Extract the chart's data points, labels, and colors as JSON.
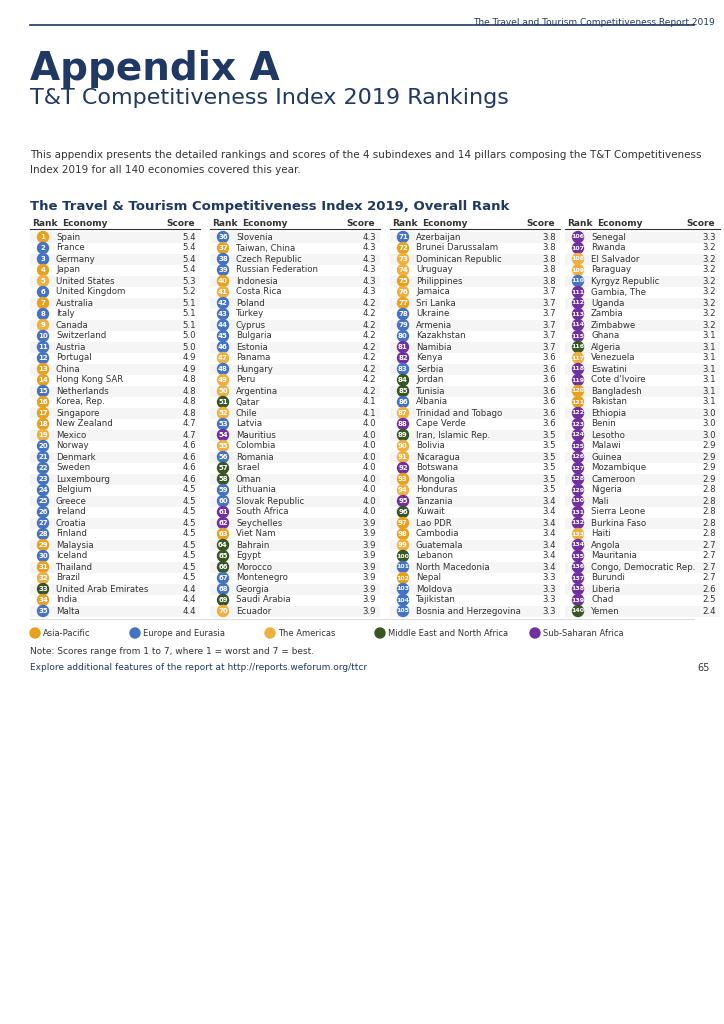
{
  "header_text": "The Travel and Tourism Competitiveness Report 2019",
  "title_line1": "Appendix A",
  "title_line2": "T&T Competitiveness Index 2019 Rankings",
  "intro_text": "This appendix presents the detailed rankings and scores of the 4 subindexes and 14 pillars composing the T&T Competitiveness\nIndex 2019 for all 140 economies covered this year.",
  "section_title": "The Travel & Tourism Competitiveness Index 2019, Overall Rank",
  "col_headers": [
    "Rank",
    "Economy",
    "Score"
  ],
  "note": "Note: Scores range from 1 to 7, where 1 = worst and 7 = best.",
  "footer": "Explore additional features of the report at http://reports.weforum.org/ttcr",
  "page_num": "65",
  "legend": [
    {
      "label": "Asia-Pacific",
      "color": "#E8A020"
    },
    {
      "label": "Europe and Eurasia",
      "color": "#4472C4"
    },
    {
      "label": "The Americas",
      "color": "#F0B040"
    },
    {
      "label": "Middle East and North Africa",
      "color": "#375623"
    },
    {
      "label": "Sub-Saharan Africa",
      "color": "#7030A0"
    }
  ],
  "data": [
    [
      1,
      "Spain",
      5.4,
      "#E8A020"
    ],
    [
      2,
      "France",
      5.4,
      "#4472C4"
    ],
    [
      3,
      "Germany",
      5.4,
      "#4472C4"
    ],
    [
      4,
      "Japan",
      5.4,
      "#E8A020"
    ],
    [
      5,
      "United States",
      5.3,
      "#F0B040"
    ],
    [
      6,
      "United Kingdom",
      5.2,
      "#4472C4"
    ],
    [
      7,
      "Australia",
      5.1,
      "#E8A020"
    ],
    [
      8,
      "Italy",
      5.1,
      "#4472C4"
    ],
    [
      9,
      "Canada",
      5.1,
      "#F0B040"
    ],
    [
      10,
      "Switzerland",
      5.0,
      "#4472C4"
    ],
    [
      11,
      "Austria",
      5.0,
      "#4472C4"
    ],
    [
      12,
      "Portugal",
      4.9,
      "#4472C4"
    ],
    [
      13,
      "China",
      4.9,
      "#E8A020"
    ],
    [
      14,
      "Hong Kong SAR",
      4.8,
      "#E8A020"
    ],
    [
      15,
      "Netherlands",
      4.8,
      "#4472C4"
    ],
    [
      16,
      "Korea, Rep.",
      4.8,
      "#E8A020"
    ],
    [
      17,
      "Singapore",
      4.8,
      "#E8A020"
    ],
    [
      18,
      "New Zealand",
      4.7,
      "#E8A020"
    ],
    [
      19,
      "Mexico",
      4.7,
      "#F0B040"
    ],
    [
      20,
      "Norway",
      4.6,
      "#4472C4"
    ],
    [
      21,
      "Denmark",
      4.6,
      "#4472C4"
    ],
    [
      22,
      "Sweden",
      4.6,
      "#4472C4"
    ],
    [
      23,
      "Luxembourg",
      4.6,
      "#4472C4"
    ],
    [
      24,
      "Belgium",
      4.5,
      "#4472C4"
    ],
    [
      25,
      "Greece",
      4.5,
      "#4472C4"
    ],
    [
      26,
      "Ireland",
      4.5,
      "#4472C4"
    ],
    [
      27,
      "Croatia",
      4.5,
      "#4472C4"
    ],
    [
      28,
      "Finland",
      4.5,
      "#4472C4"
    ],
    [
      29,
      "Malaysia",
      4.5,
      "#E8A020"
    ],
    [
      30,
      "Iceland",
      4.5,
      "#4472C4"
    ],
    [
      31,
      "Thailand",
      4.5,
      "#E8A020"
    ],
    [
      32,
      "Brazil",
      4.5,
      "#F0B040"
    ],
    [
      33,
      "United Arab Emirates",
      4.4,
      "#375623"
    ],
    [
      34,
      "India",
      4.4,
      "#E8A020"
    ],
    [
      35,
      "Malta",
      4.4,
      "#4472C4"
    ],
    [
      36,
      "Slovenia",
      4.3,
      "#4472C4"
    ],
    [
      37,
      "Taiwan, China",
      4.3,
      "#E8A020"
    ],
    [
      38,
      "Czech Republic",
      4.3,
      "#4472C4"
    ],
    [
      39,
      "Russian Federation",
      4.3,
      "#4472C4"
    ],
    [
      40,
      "Indonesia",
      4.3,
      "#E8A020"
    ],
    [
      41,
      "Costa Rica",
      4.3,
      "#F0B040"
    ],
    [
      42,
      "Poland",
      4.2,
      "#4472C4"
    ],
    [
      43,
      "Turkey",
      4.2,
      "#4472C4"
    ],
    [
      44,
      "Cyprus",
      4.2,
      "#4472C4"
    ],
    [
      45,
      "Bulgaria",
      4.2,
      "#4472C4"
    ],
    [
      46,
      "Estonia",
      4.2,
      "#4472C4"
    ],
    [
      47,
      "Panama",
      4.2,
      "#F0B040"
    ],
    [
      48,
      "Hungary",
      4.2,
      "#4472C4"
    ],
    [
      49,
      "Peru",
      4.2,
      "#F0B040"
    ],
    [
      50,
      "Argentina",
      4.2,
      "#F0B040"
    ],
    [
      51,
      "Qatar",
      4.1,
      "#375623"
    ],
    [
      52,
      "Chile",
      4.1,
      "#F0B040"
    ],
    [
      53,
      "Latvia",
      4.0,
      "#4472C4"
    ],
    [
      54,
      "Mauritius",
      4.0,
      "#7030A0"
    ],
    [
      55,
      "Colombia",
      4.0,
      "#F0B040"
    ],
    [
      56,
      "Romania",
      4.0,
      "#4472C4"
    ],
    [
      57,
      "Israel",
      4.0,
      "#375623"
    ],
    [
      58,
      "Oman",
      4.0,
      "#375623"
    ],
    [
      59,
      "Lithuania",
      4.0,
      "#4472C4"
    ],
    [
      60,
      "Slovak Republic",
      4.0,
      "#4472C4"
    ],
    [
      61,
      "South Africa",
      4.0,
      "#7030A0"
    ],
    [
      62,
      "Seychelles",
      3.9,
      "#7030A0"
    ],
    [
      63,
      "Viet Nam",
      3.9,
      "#E8A020"
    ],
    [
      64,
      "Bahrain",
      3.9,
      "#375623"
    ],
    [
      65,
      "Egypt",
      3.9,
      "#375623"
    ],
    [
      66,
      "Morocco",
      3.9,
      "#375623"
    ],
    [
      67,
      "Montenegro",
      3.9,
      "#4472C4"
    ],
    [
      68,
      "Georgia",
      3.9,
      "#4472C4"
    ],
    [
      69,
      "Saudi Arabia",
      3.9,
      "#375623"
    ],
    [
      70,
      "Ecuador",
      3.9,
      "#F0B040"
    ],
    [
      71,
      "Azerbaijan",
      3.8,
      "#4472C4"
    ],
    [
      72,
      "Brunei Darussalam",
      3.8,
      "#E8A020"
    ],
    [
      73,
      "Dominican Republic",
      3.8,
      "#F0B040"
    ],
    [
      74,
      "Uruguay",
      3.8,
      "#F0B040"
    ],
    [
      75,
      "Philippines",
      3.8,
      "#E8A020"
    ],
    [
      76,
      "Jamaica",
      3.7,
      "#F0B040"
    ],
    [
      77,
      "Sri Lanka",
      3.7,
      "#E8A020"
    ],
    [
      78,
      "Ukraine",
      3.7,
      "#4472C4"
    ],
    [
      79,
      "Armenia",
      3.7,
      "#4472C4"
    ],
    [
      80,
      "Kazakhstan",
      3.7,
      "#4472C4"
    ],
    [
      81,
      "Namibia",
      3.7,
      "#7030A0"
    ],
    [
      82,
      "Kenya",
      3.6,
      "#7030A0"
    ],
    [
      83,
      "Serbia",
      3.6,
      "#4472C4"
    ],
    [
      84,
      "Jordan",
      3.6,
      "#375623"
    ],
    [
      85,
      "Tunisia",
      3.6,
      "#375623"
    ],
    [
      86,
      "Albania",
      3.6,
      "#4472C4"
    ],
    [
      87,
      "Trinidad and Tobago",
      3.6,
      "#F0B040"
    ],
    [
      88,
      "Cape Verde",
      3.6,
      "#7030A0"
    ],
    [
      89,
      "Iran, Islamic Rep.",
      3.5,
      "#375623"
    ],
    [
      90,
      "Bolivia",
      3.5,
      "#F0B040"
    ],
    [
      91,
      "Nicaragua",
      3.5,
      "#F0B040"
    ],
    [
      92,
      "Botswana",
      3.5,
      "#7030A0"
    ],
    [
      93,
      "Mongolia",
      3.5,
      "#E8A020"
    ],
    [
      94,
      "Honduras",
      3.5,
      "#F0B040"
    ],
    [
      95,
      "Tanzania",
      3.4,
      "#7030A0"
    ],
    [
      96,
      "Kuwait",
      3.4,
      "#375623"
    ],
    [
      97,
      "Lao PDR",
      3.4,
      "#E8A020"
    ],
    [
      98,
      "Cambodia",
      3.4,
      "#E8A020"
    ],
    [
      99,
      "Guatemala",
      3.4,
      "#F0B040"
    ],
    [
      100,
      "Lebanon",
      3.4,
      "#375623"
    ],
    [
      101,
      "North Macedonia",
      3.4,
      "#4472C4"
    ],
    [
      102,
      "Nepal",
      3.3,
      "#E8A020"
    ],
    [
      103,
      "Moldova",
      3.3,
      "#4472C4"
    ],
    [
      104,
      "Tajikistan",
      3.3,
      "#4472C4"
    ],
    [
      105,
      "Bosnia and Herzegovina",
      3.3,
      "#4472C4"
    ],
    [
      106,
      "Senegal",
      3.3,
      "#7030A0"
    ],
    [
      107,
      "Rwanda",
      3.2,
      "#7030A0"
    ],
    [
      108,
      "El Salvador",
      3.2,
      "#F0B040"
    ],
    [
      109,
      "Paraguay",
      3.2,
      "#F0B040"
    ],
    [
      110,
      "Kyrgyz Republic",
      3.2,
      "#4472C4"
    ],
    [
      111,
      "Gambia, The",
      3.2,
      "#7030A0"
    ],
    [
      112,
      "Uganda",
      3.2,
      "#7030A0"
    ],
    [
      113,
      "Zambia",
      3.2,
      "#7030A0"
    ],
    [
      114,
      "Zimbabwe",
      3.2,
      "#7030A0"
    ],
    [
      115,
      "Ghana",
      3.1,
      "#7030A0"
    ],
    [
      116,
      "Algeria",
      3.1,
      "#375623"
    ],
    [
      117,
      "Venezuela",
      3.1,
      "#F0B040"
    ],
    [
      118,
      "Eswatini",
      3.1,
      "#7030A0"
    ],
    [
      119,
      "Cote d'Ivoire",
      3.1,
      "#7030A0"
    ],
    [
      120,
      "Bangladesh",
      3.1,
      "#E8A020"
    ],
    [
      121,
      "Pakistan",
      3.1,
      "#E8A020"
    ],
    [
      122,
      "Ethiopia",
      3.0,
      "#7030A0"
    ],
    [
      123,
      "Benin",
      3.0,
      "#7030A0"
    ],
    [
      124,
      "Lesotho",
      3.0,
      "#7030A0"
    ],
    [
      125,
      "Malawi",
      2.9,
      "#7030A0"
    ],
    [
      126,
      "Guinea",
      2.9,
      "#7030A0"
    ],
    [
      127,
      "Mozambique",
      2.9,
      "#7030A0"
    ],
    [
      128,
      "Cameroon",
      2.9,
      "#7030A0"
    ],
    [
      129,
      "Nigeria",
      2.8,
      "#7030A0"
    ],
    [
      130,
      "Mali",
      2.8,
      "#7030A0"
    ],
    [
      131,
      "Sierra Leone",
      2.8,
      "#7030A0"
    ],
    [
      132,
      "Burkina Faso",
      2.8,
      "#7030A0"
    ],
    [
      133,
      "Haiti",
      2.8,
      "#F0B040"
    ],
    [
      134,
      "Angola",
      2.7,
      "#7030A0"
    ],
    [
      135,
      "Mauritania",
      2.7,
      "#7030A0"
    ],
    [
      136,
      "Congo, Democratic Rep.",
      2.7,
      "#7030A0"
    ],
    [
      137,
      "Burundi",
      2.7,
      "#7030A0"
    ],
    [
      138,
      "Liberia",
      2.6,
      "#7030A0"
    ],
    [
      139,
      "Chad",
      2.5,
      "#7030A0"
    ],
    [
      140,
      "Yemen",
      2.4,
      "#375623"
    ]
  ]
}
